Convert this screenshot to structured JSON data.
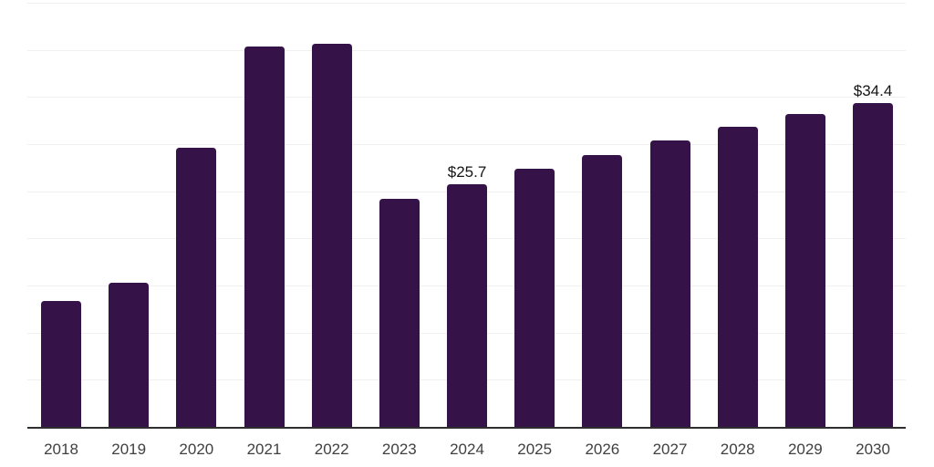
{
  "chart_data": {
    "type": "bar",
    "title": "",
    "xlabel": "",
    "ylabel": "",
    "categories": [
      "2018",
      "2019",
      "2020",
      "2021",
      "2022",
      "2023",
      "2024",
      "2025",
      "2026",
      "2027",
      "2028",
      "2029",
      "2030"
    ],
    "values": [
      13.4,
      15.3,
      29.6,
      40.4,
      40.6,
      24.2,
      25.7,
      27.4,
      28.8,
      30.4,
      31.8,
      33.2,
      34.4
    ],
    "data_labels": [
      "",
      "",
      "",
      "",
      "",
      "",
      "$25.7",
      "",
      "",
      "",
      "",
      "",
      "$34.4"
    ],
    "ylim": [
      0,
      45
    ],
    "gridline_step": 5,
    "grid": true,
    "legend": false,
    "y_axis_tick_labels_visible": false,
    "colors": {
      "bar": "#351349",
      "axis_line": "#2e2e2e",
      "gridline": "#f0f0f0",
      "tick_label": "#404040",
      "data_label": "#141414",
      "background": "#ffffff"
    }
  }
}
